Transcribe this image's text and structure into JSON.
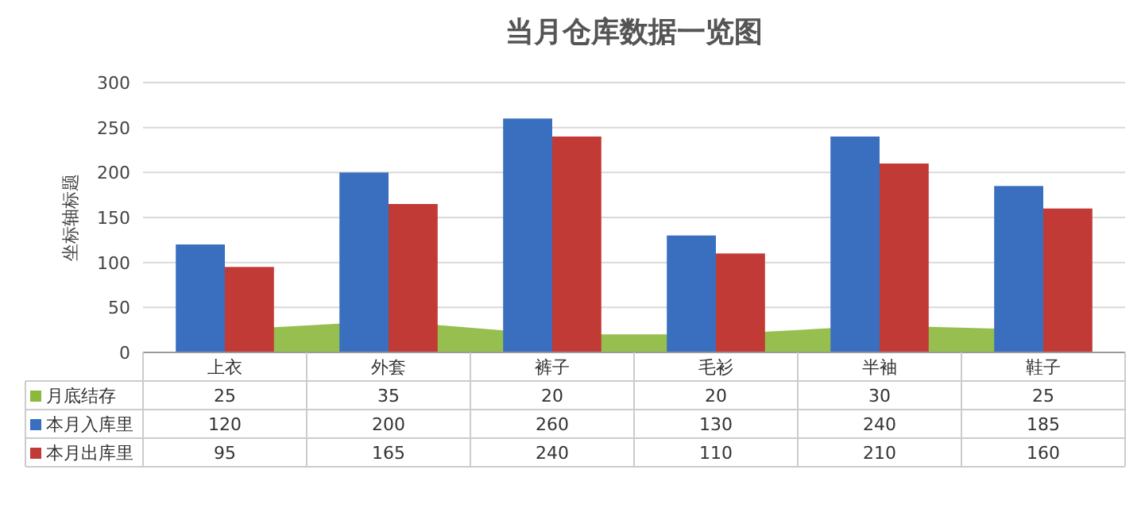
{
  "chart_data": {
    "type": "bar",
    "title": "当月仓库数据一览图",
    "ylabel": "坐标轴标题",
    "categories": [
      "上衣",
      "外套",
      "裤子",
      "毛衫",
      "半袖",
      "鞋子"
    ],
    "series": [
      {
        "name": "月底结存",
        "type": "area",
        "color": "#8cb83c",
        "values": [
          25,
          35,
          20,
          20,
          30,
          25
        ]
      },
      {
        "name": "本月入库里",
        "color": "#3a6fbf",
        "values": [
          120,
          200,
          260,
          130,
          240,
          185
        ]
      },
      {
        "name": "本月出库里",
        "color": "#c23a36",
        "values": [
          95,
          165,
          240,
          110,
          210,
          160
        ]
      }
    ],
    "ylim": [
      0,
      300
    ],
    "yticks": [
      0,
      50,
      100,
      150,
      200,
      250,
      300
    ],
    "grid": "y",
    "legend": "bottom",
    "data_labels": true
  }
}
